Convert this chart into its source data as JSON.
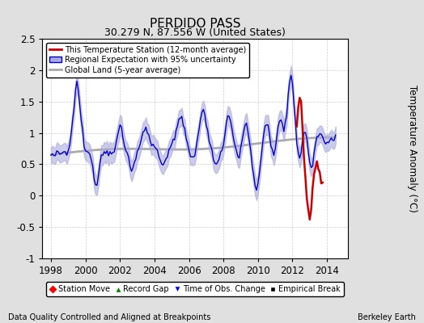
{
  "title": "PERDIDO PASS",
  "subtitle": "30.279 N, 87.556 W (United States)",
  "xlabel_bottom": "Data Quality Controlled and Aligned at Breakpoints",
  "xlabel_right": "Berkeley Earth",
  "ylabel": "Temperature Anomaly (°C)",
  "xlim": [
    1997.5,
    2015.2
  ],
  "ylim": [
    -1.0,
    2.5
  ],
  "yticks": [
    -1.0,
    -0.5,
    0.0,
    0.5,
    1.0,
    1.5,
    2.0,
    2.5
  ],
  "xticks": [
    1998,
    2000,
    2002,
    2004,
    2006,
    2008,
    2010,
    2012,
    2014
  ],
  "bg_color": "#e0e0e0",
  "plot_bg_color": "#ffffff",
  "blue_line_color": "#0000cc",
  "blue_fill_color": "#aaaadd",
  "red_line_color": "#cc0000",
  "gray_line_color": "#aaaaaa",
  "legend1_label": "This Temperature Station (12-month average)",
  "legend2_label": "Regional Expectation with 95% uncertainty",
  "legend3_label": "Global Land (5-year average)"
}
